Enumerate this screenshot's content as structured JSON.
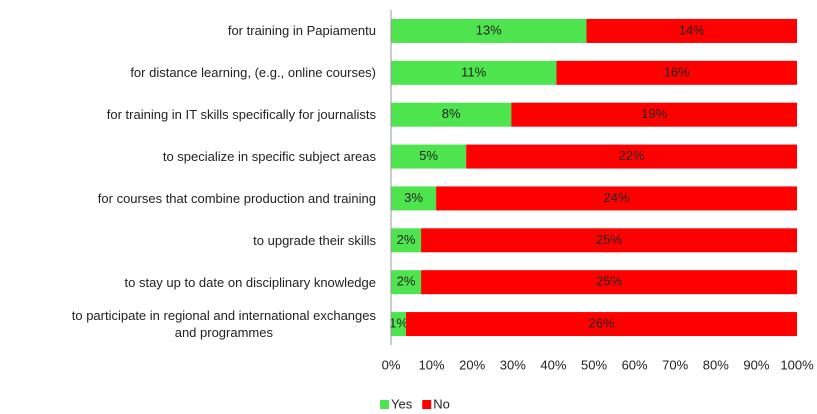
{
  "chart_data": {
    "type": "bar",
    "orientation": "horizontal",
    "stacked": "percent",
    "categories": [
      "for training in Papiamentu",
      "for distance learning, (e.g., online courses)",
      "for training in IT skills specifically for journalists",
      "to specialize in specific subject areas",
      "for courses that combine production and training",
      "to upgrade their skills",
      "to stay up to date on disciplinary knowledge",
      "to participate in regional and international exchanges\nand programmes"
    ],
    "series": [
      {
        "name": "Yes",
        "color": "#4ee44e",
        "values": [
          13,
          11,
          8,
          5,
          3,
          2,
          2,
          1
        ],
        "value_labels": [
          "13%",
          "11%",
          "8%",
          "5%",
          "3%",
          "2%",
          "2%",
          "1%"
        ]
      },
      {
        "name": "No",
        "color": "#ff0000",
        "values": [
          14,
          16,
          19,
          22,
          24,
          25,
          25,
          26
        ],
        "value_labels": [
          "14%",
          "16%",
          "19%",
          "22%",
          "24%",
          "25%",
          "25%",
          "26%"
        ]
      }
    ],
    "xlim": [
      0,
      100
    ],
    "xticks": [
      {
        "value": 0,
        "label": "0%"
      },
      {
        "value": 10,
        "label": "10%"
      },
      {
        "value": 20,
        "label": "20%"
      },
      {
        "value": 30,
        "label": "30%"
      },
      {
        "value": 40,
        "label": "40%"
      },
      {
        "value": 50,
        "label": "50%"
      },
      {
        "value": 60,
        "label": "60%"
      },
      {
        "value": 70,
        "label": "70%"
      },
      {
        "value": 80,
        "label": "80%"
      },
      {
        "value": 90,
        "label": "90%"
      },
      {
        "value": 100,
        "label": "100%"
      }
    ],
    "legend": "bottom"
  }
}
